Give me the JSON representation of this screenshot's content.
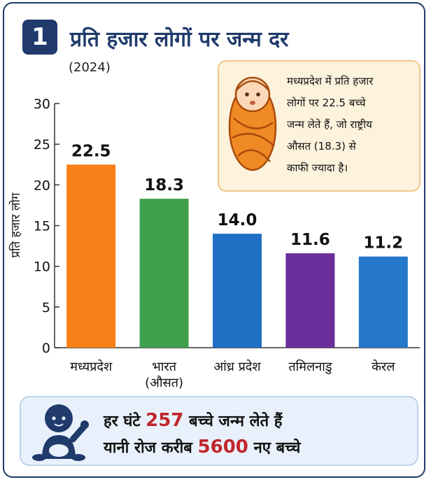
{
  "header": {
    "number": "1",
    "title": "प्रति हजार लोगों पर जन्म दर",
    "subtitle": "(2024)"
  },
  "info": {
    "lines": [
      "मध्यप्रदेश में प्रति हजार",
      "लोगों पर 22.5 बच्चे",
      "जन्म लेते हैं, जो राष्ट्रीय",
      "औसत (18.3) से",
      "काफी ज्यादा है।"
    ]
  },
  "footer": {
    "line1_pre": "हर घंटे",
    "line1_num": "257",
    "line1_post": "बच्चे जन्म लेते हैं",
    "line2_pre": "यानी रोज करीब",
    "line2_num": "5600",
    "line2_post": "नए बच्चे"
  },
  "colors": {
    "accent": "#1f3a6b",
    "highlight": "#c0262b"
  },
  "chart_data": {
    "type": "bar",
    "title": "प्रति हजार लोगों पर जन्म दर",
    "subtitle": "(2024)",
    "ylabel": "प्रति हजार लोग",
    "xlabel": "",
    "ylim": [
      0,
      30
    ],
    "yticks": [
      0,
      5,
      10,
      15,
      20,
      25,
      30
    ],
    "grid": false,
    "categories": [
      [
        "मध्यप्रदेश"
      ],
      [
        "भारत",
        "(औसत)"
      ],
      [
        "आंध्र प्रदेश"
      ],
      [
        "तमिलनाडु"
      ],
      [
        "केरल"
      ]
    ],
    "values": [
      22.5,
      18.3,
      14.0,
      11.6,
      11.2
    ],
    "value_labels": [
      "22.5",
      "18.3",
      "14.0",
      "11.6",
      "11.2"
    ],
    "bar_colors": [
      "#f77f17",
      "#3f9f4c",
      "#1f6fc5",
      "#6a2f9b",
      "#2477c9"
    ]
  }
}
